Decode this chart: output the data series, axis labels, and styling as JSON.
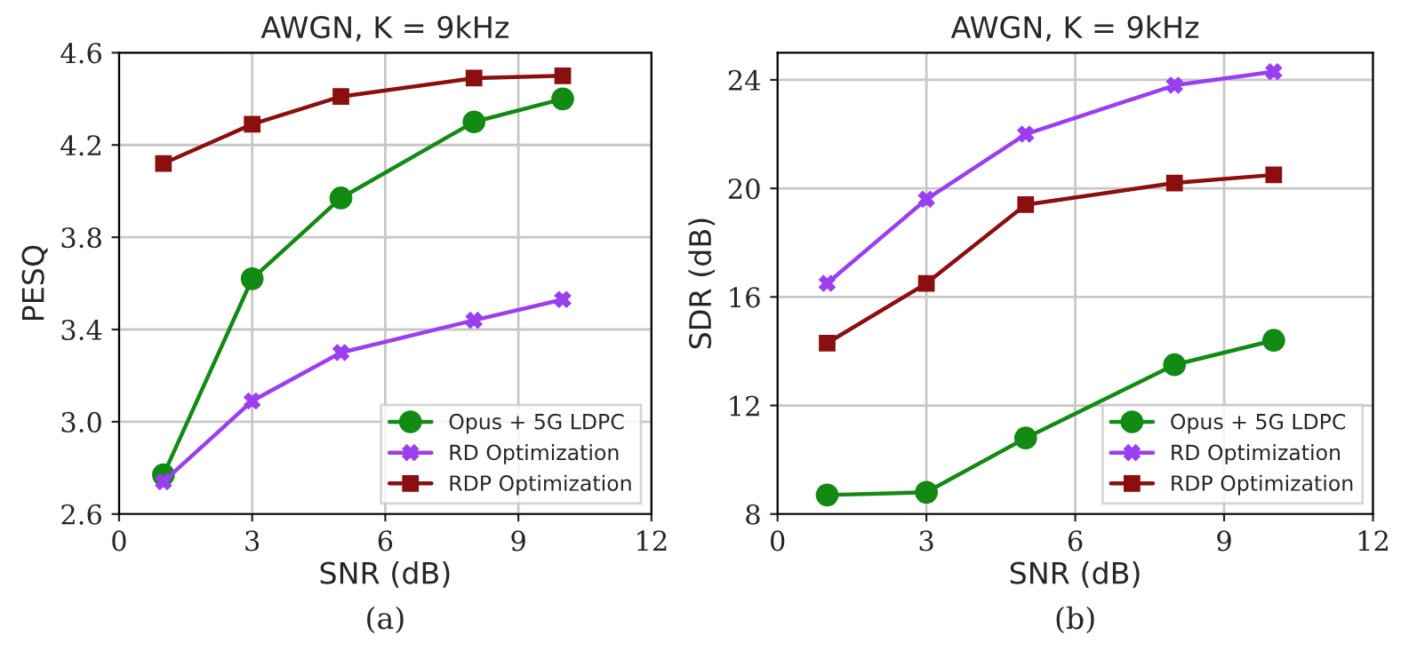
{
  "chart_data": [
    {
      "type": "line",
      "title": "AWGN, K = 9kHz",
      "xlabel": "SNR (dB)",
      "ylabel": "PESQ",
      "x": [
        1,
        3,
        5,
        8,
        10
      ],
      "xlim": [
        0,
        12
      ],
      "xticks": [
        0,
        3,
        6,
        9,
        12
      ],
      "ylim": [
        2.6,
        4.6
      ],
      "yticks": [
        {
          "value": 2.6,
          "label": "2.6"
        },
        {
          "value": 3.0,
          "label": "3.0"
        },
        {
          "value": 3.4,
          "label": "3.4"
        },
        {
          "value": 3.8,
          "label": "3.8"
        },
        {
          "value": 4.2,
          "label": "4.2"
        },
        {
          "value": 4.6,
          "label": "4.6"
        }
      ],
      "grid": true,
      "legend": "bottom right",
      "annotations": [
        "(a)"
      ],
      "series": [
        {
          "name": "Opus + 5G LDPC",
          "color": "#138a13",
          "marker": "circle",
          "values": [
            2.77,
            3.62,
            3.97,
            4.3,
            4.4
          ]
        },
        {
          "name": "RD Optimization",
          "color": "#9b3ef0",
          "marker": "cross",
          "values": [
            2.74,
            3.09,
            3.3,
            3.44,
            3.53
          ]
        },
        {
          "name": "RDP Optimization",
          "color": "#8b0f0f",
          "marker": "square",
          "values": [
            4.12,
            4.29,
            4.41,
            4.49,
            4.5
          ]
        }
      ]
    },
    {
      "type": "line",
      "title": "AWGN, K = 9kHz",
      "xlabel": "SNR (dB)",
      "ylabel": "SDR (dB)",
      "x": [
        1,
        3,
        5,
        8,
        10
      ],
      "xlim": [
        0,
        12
      ],
      "xticks": [
        0,
        3,
        6,
        9,
        12
      ],
      "ylim": [
        8,
        25
      ],
      "yticks": [
        8,
        12,
        16,
        20,
        24
      ],
      "grid": true,
      "legend": "bottom right",
      "annotations": [
        "(b)"
      ],
      "series": [
        {
          "name": "Opus + 5G LDPC",
          "color": "#138a13",
          "marker": "circle",
          "values": [
            8.7,
            8.8,
            10.8,
            13.5,
            14.4
          ]
        },
        {
          "name": "RD Optimization",
          "color": "#9b3ef0",
          "marker": "cross",
          "values": [
            16.5,
            19.6,
            22.0,
            23.8,
            24.3
          ]
        },
        {
          "name": "RDP Optimization",
          "color": "#8b0f0f",
          "marker": "square",
          "values": [
            14.3,
            16.5,
            19.4,
            20.2,
            20.5
          ]
        }
      ]
    }
  ]
}
